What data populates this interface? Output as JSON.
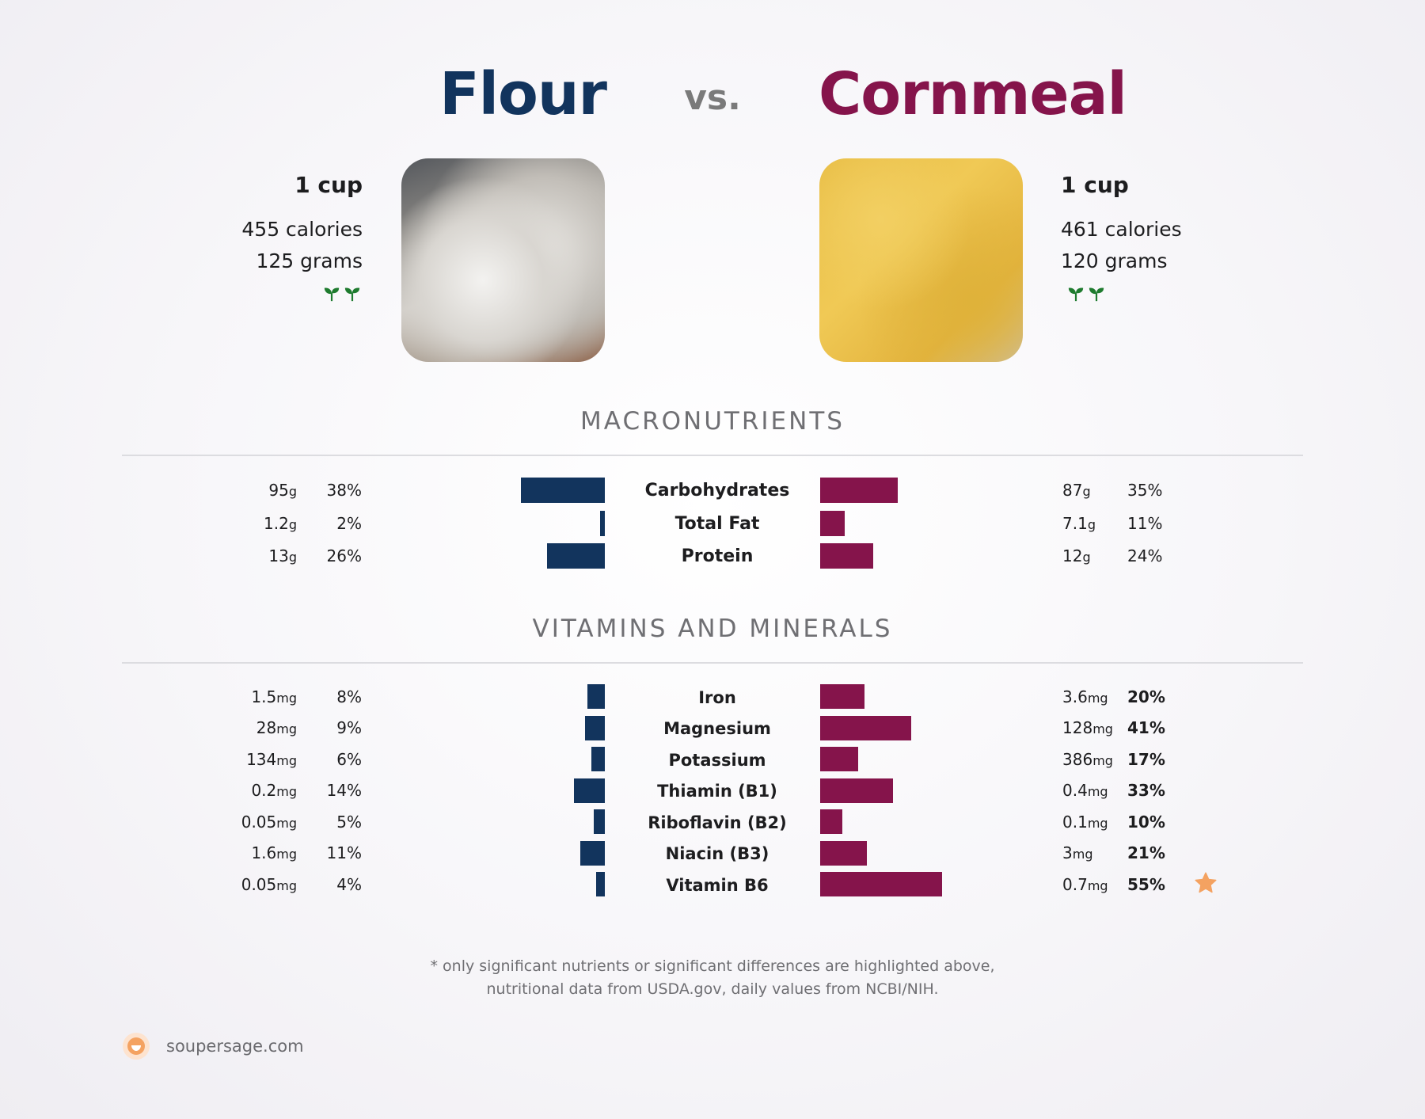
{
  "header": {
    "left_title": "Flour",
    "vs": "vs.",
    "right_title": "Cornmeal"
  },
  "left_food": {
    "serving": "1 cup",
    "calories": "455 calories",
    "grams": "125 grams",
    "image_icon": "flour-photo",
    "badge_icon": "sprout-icon"
  },
  "right_food": {
    "serving": "1 cup",
    "calories": "461 calories",
    "grams": "120 grams",
    "image_icon": "cornmeal-photo",
    "badge_icon": "sprout-icon"
  },
  "colors": {
    "left": "#12345d",
    "right": "#85144b",
    "star": "#f4a261"
  },
  "sections": {
    "macro_title": "MACRONUTRIENTS",
    "vitamin_title": "VITAMINS AND MINERALS"
  },
  "chart_data": [
    {
      "type": "bar",
      "title": "MACRONUTRIENTS",
      "categories": [
        "Carbohydrates",
        "Total Fat",
        "Protein"
      ],
      "series": [
        {
          "name": "Flour",
          "amounts": [
            "95",
            "1.2",
            "13"
          ],
          "units": [
            "g",
            "g",
            "g"
          ],
          "values": [
            38,
            2,
            26
          ],
          "labels": [
            "38%",
            "2%",
            "26%"
          ]
        },
        {
          "name": "Cornmeal",
          "amounts": [
            "87",
            "7.1",
            "12"
          ],
          "units": [
            "g",
            "g",
            "g"
          ],
          "values": [
            35,
            11,
            24
          ],
          "labels": [
            "35%",
            "11%",
            "24%"
          ]
        }
      ]
    },
    {
      "type": "bar",
      "title": "VITAMINS AND MINERALS",
      "categories": [
        "Iron",
        "Magnesium",
        "Potassium",
        "Thiamin (B1)",
        "Riboflavin (B2)",
        "Niacin (B3)",
        "Vitamin B6"
      ],
      "series": [
        {
          "name": "Flour",
          "amounts": [
            "1.5",
            "28",
            "134",
            "0.2",
            "0.05",
            "1.6",
            "0.05"
          ],
          "units": [
            "mg",
            "mg",
            "mg",
            "mg",
            "mg",
            "mg",
            "mg"
          ],
          "values": [
            8,
            9,
            6,
            14,
            5,
            11,
            4
          ],
          "labels": [
            "8%",
            "9%",
            "6%",
            "14%",
            "5%",
            "11%",
            "4%"
          ]
        },
        {
          "name": "Cornmeal",
          "amounts": [
            "3.6",
            "128",
            "386",
            "0.4",
            "0.1",
            "3",
            "0.7"
          ],
          "units": [
            "mg",
            "mg",
            "mg",
            "mg",
            "mg",
            "mg",
            "mg"
          ],
          "values": [
            20,
            41,
            17,
            33,
            10,
            21,
            55
          ],
          "labels": [
            "20%",
            "41%",
            "17%",
            "33%",
            "10%",
            "21%",
            "55%"
          ],
          "highlighted": true,
          "star_category": "Vitamin B6"
        }
      ]
    }
  ],
  "footnote": {
    "line1": "* only significant nutrients or significant differences are highlighted above,",
    "line2": "nutritional data from USDA.gov, daily values from NCBI/NIH."
  },
  "brand": {
    "name": "soupersage.com",
    "logo_icon": "soupersage-logo-icon"
  }
}
